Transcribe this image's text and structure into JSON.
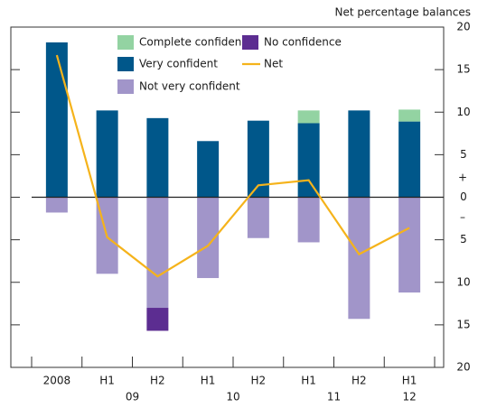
{
  "chart_data": {
    "type": "bar",
    "y_label": "Net percentage balances",
    "categories": [
      "2008",
      "H1",
      "H2",
      "H1",
      "H2",
      "H1",
      "H2",
      "H1"
    ],
    "x_groups": [
      {
        "label": "09",
        "span": [
          1,
          2
        ]
      },
      {
        "label": "10",
        "span": [
          3,
          4
        ]
      },
      {
        "label": "11",
        "span": [
          5,
          6
        ]
      },
      {
        "label": "12",
        "span": [
          7,
          7
        ]
      }
    ],
    "series": [
      {
        "name": "Very confident",
        "color": "#00578a",
        "values": [
          18.2,
          10.2,
          9.3,
          6.6,
          9.0,
          8.7,
          10.2,
          8.9
        ]
      },
      {
        "name": "Complete confidence",
        "color": "#93d3a2",
        "values": [
          null,
          null,
          null,
          null,
          null,
          1.5,
          null,
          1.4
        ]
      },
      {
        "name": "Not very confident",
        "color": "#a195c9",
        "values": [
          -1.8,
          -9.0,
          -13.0,
          -9.5,
          -4.8,
          -5.3,
          -14.3,
          -11.2
        ]
      },
      {
        "name": "No confidence",
        "color": "#5c2d91",
        "values": [
          null,
          null,
          -2.7,
          null,
          null,
          null,
          null,
          null
        ]
      },
      {
        "name": "Net",
        "color": "#f5b31b",
        "type": "line",
        "values": [
          16.7,
          -4.7,
          -9.3,
          -5.7,
          1.4,
          2.0,
          -6.7,
          -3.6
        ]
      }
    ],
    "ylim": [
      -20,
      20
    ],
    "yticks": [
      {
        "value": -20,
        "label": "20"
      },
      {
        "value": -15,
        "label": "15"
      },
      {
        "value": -10,
        "label": "10"
      },
      {
        "value": -5,
        "label": "5"
      },
      0,
      5,
      10,
      15,
      20
    ],
    "sign_labels": [
      "+",
      "–"
    ]
  }
}
